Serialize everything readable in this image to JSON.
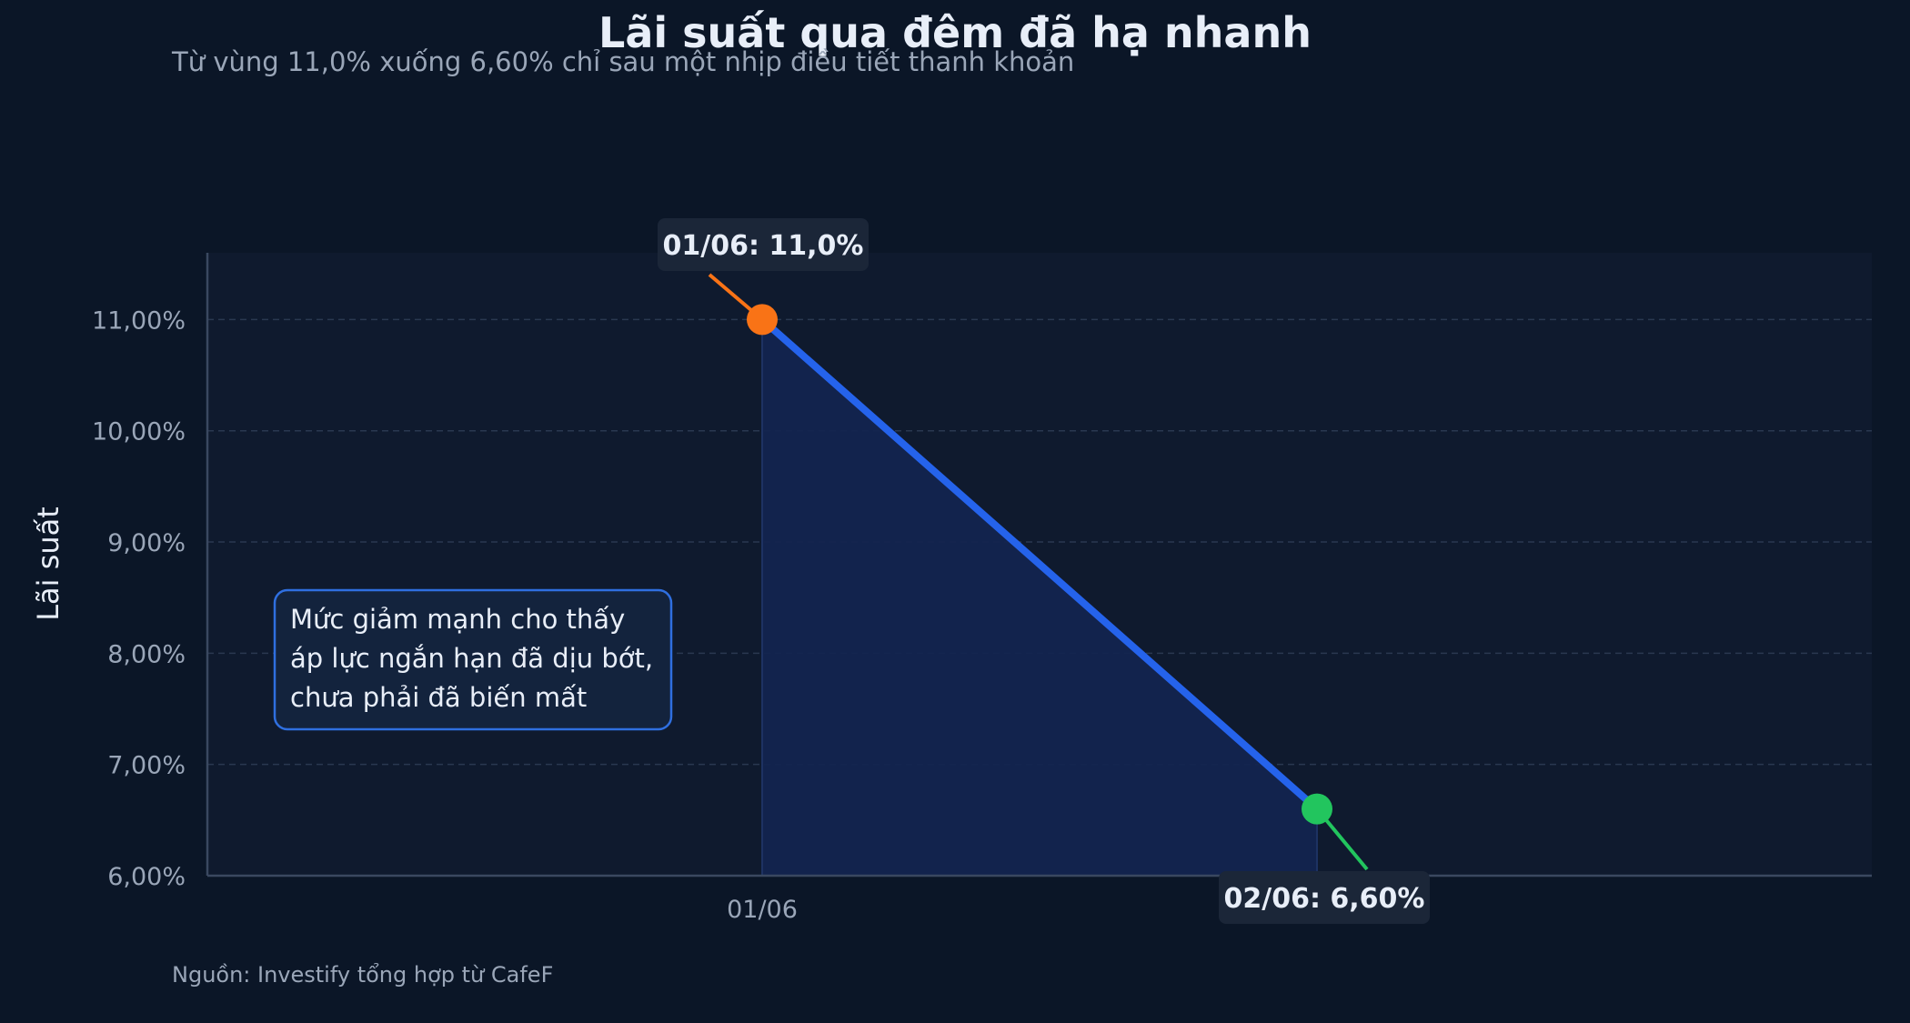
{
  "colors": {
    "background": "#0b1627",
    "plot_background": "#0f1a2e",
    "line": "#2563eb",
    "area_fill": "#13244f",
    "start_marker": "#f97316",
    "end_marker": "#22c55e",
    "text_primary": "#e8eef8",
    "text_secondary": "#9aa6b8",
    "grid": "#2a3850",
    "axis": "#3a4860",
    "label_box": "#1b2638",
    "note_border": "#2f6fe0",
    "note_fill": "#13233d"
  },
  "chart_data": {
    "type": "area",
    "title": "Lãi suất qua đêm đã hạ nhanh",
    "subtitle": "Từ vùng 11,0% xuống 6,60% chỉ sau một nhịp điều tiết thanh khoản",
    "xlabel": "",
    "ylabel": "Lãi suất",
    "categories": [
      "01/06",
      "02/06"
    ],
    "values": [
      11.0,
      6.6
    ],
    "ylim": [
      6.0,
      11.6
    ],
    "yticks": [
      6,
      7,
      8,
      9,
      10,
      11
    ],
    "ytick_labels": [
      "6,00%",
      "7,00%",
      "8,00%",
      "9,00%",
      "10,00%",
      "11,00%"
    ],
    "grid": true,
    "point_labels": [
      "01/06: 11,0%",
      "02/06: 6,60%"
    ],
    "note": [
      "Mức giảm mạnh cho thấy",
      "áp lực ngắn hạn đã dịu bớt,",
      "chưa phải đã biến mất"
    ],
    "source": "Nguồn: Investify tổng hợp từ CafeF"
  }
}
